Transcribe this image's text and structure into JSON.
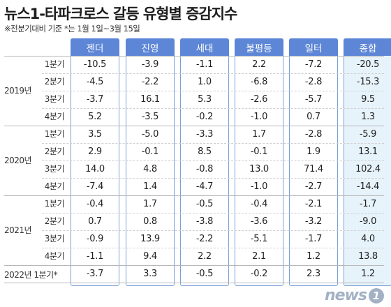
{
  "title": "뉴스1-타파크로스 갈등 유형별 증감지수",
  "subtitle": "※전분기대비 기준 *는 1월 1일~3월 15일",
  "logo": {
    "text": "news",
    "mark": "1"
  },
  "chart_data": {
    "type": "table",
    "title": "뉴스1-타파크로스 갈등 유형별 증감지수",
    "subtitle": "※전분기대비 기준 *는 1월 1일~3월 15일",
    "columns": [
      "젠더",
      "진영",
      "세대",
      "불평등",
      "일터",
      "종합"
    ],
    "year_groups": [
      {
        "year": "2019년",
        "quarters": [
          "1분기",
          "2분기",
          "3분기",
          "4분기"
        ]
      },
      {
        "year": "2020년",
        "quarters": [
          "1분기",
          "2분기",
          "3분기",
          "4분기"
        ]
      },
      {
        "year": "2021년",
        "quarters": [
          "1분기",
          "2분기",
          "3분기",
          "4분기"
        ]
      }
    ],
    "last_row_label": "2022년 1분기*",
    "rows": [
      [
        "-10.5",
        "-3.9",
        "-1.1",
        "2.2",
        "-7.2",
        "-20.5"
      ],
      [
        "-4.5",
        "-2.2",
        "1.0",
        "-6.8",
        "-2.8",
        "-15.3"
      ],
      [
        "-3.7",
        "16.1",
        "5.3",
        "-2.6",
        "-5.7",
        "9.5"
      ],
      [
        "5.2",
        "-3.5",
        "-0.2",
        "-1.0",
        "0.7",
        "1.3"
      ],
      [
        "3.5",
        "-5.0",
        "-3.3",
        "1.7",
        "-2.8",
        "-5.9"
      ],
      [
        "2.9",
        "-0.1",
        "8.5",
        "-0.1",
        "1.9",
        "13.1"
      ],
      [
        "14.0",
        "4.8",
        "-0.8",
        "13.0",
        "71.4",
        "102.4"
      ],
      [
        "-7.4",
        "1.4",
        "-4.7",
        "-1.0",
        "-2.7",
        "-14.4"
      ],
      [
        "-0.4",
        "1.7",
        "-0.5",
        "-0.4",
        "-2.1",
        "-1.7"
      ],
      [
        "0.7",
        "0.8",
        "-3.8",
        "-3.6",
        "-3.2",
        "-9.0"
      ],
      [
        "-0.9",
        "13.9",
        "-2.2",
        "-5.1",
        "-1.7",
        "4.0"
      ],
      [
        "-1.1",
        "9.4",
        "2.2",
        "2.1",
        "1.2",
        "13.8"
      ],
      [
        "-3.7",
        "3.3",
        "-0.5",
        "-0.2",
        "2.3",
        "1.2"
      ]
    ],
    "colors": {
      "header_bg": "#5d86d6",
      "column_border": "#7a9fd8",
      "total_column_bg": "#e7f3fb",
      "row_line": "#b8b8b8"
    }
  }
}
